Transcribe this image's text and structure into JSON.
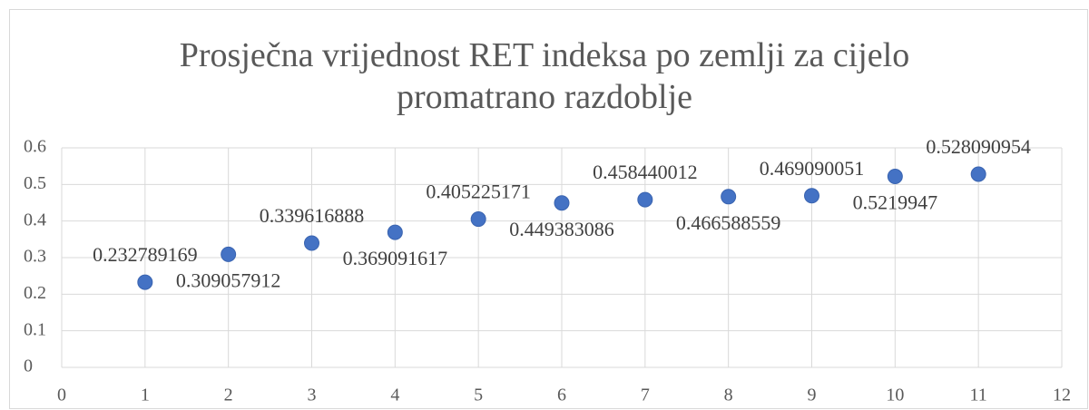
{
  "chart_data": {
    "type": "scatter",
    "title": "Prosječna vrijednost RET indeksa po zemlji za cijelo promatrano razdoblje",
    "x": [
      1,
      2,
      3,
      4,
      5,
      6,
      7,
      8,
      9,
      10,
      11
    ],
    "values": [
      0.232789169,
      0.309057912,
      0.339616888,
      0.369091617,
      0.405225171,
      0.449383086,
      0.458440012,
      0.466588559,
      0.469090051,
      0.5219947,
      0.528090954
    ],
    "color": "#4472c4",
    "xlim": [
      0,
      12
    ],
    "xticks": [
      0,
      1,
      2,
      3,
      4,
      5,
      6,
      7,
      8,
      9,
      10,
      11,
      12
    ],
    "ylim": [
      0,
      0.6
    ],
    "yticks": [
      0,
      0.1,
      0.2,
      0.3,
      0.4,
      0.5,
      0.6
    ],
    "grid": true
  }
}
